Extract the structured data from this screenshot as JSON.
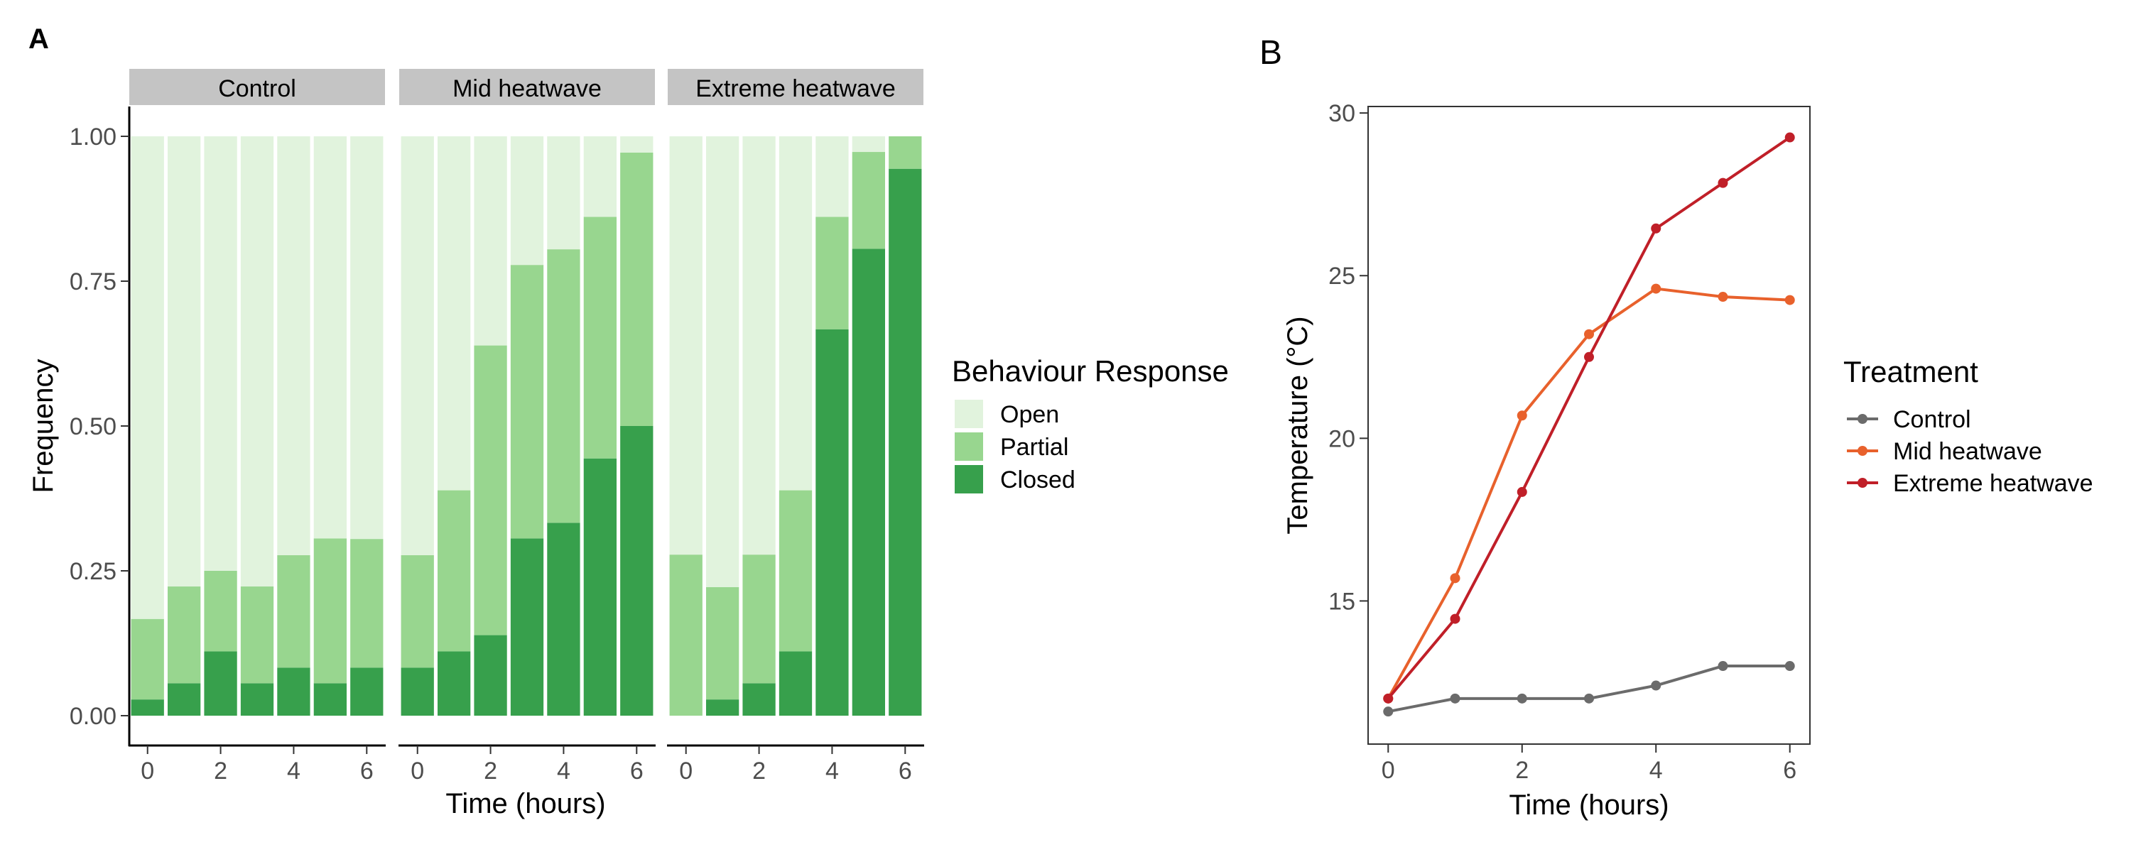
{
  "panel_a_label": "A",
  "panel_b_label": "B",
  "colors": {
    "Open": "#e1f3dd",
    "Partial": "#98d68f",
    "Closed": "#37a04c",
    "strip_bg": "#c4c4c4",
    "Control": "#6b6b6b",
    "Mid heatwave": "#e8612c",
    "Extreme heatwave": "#c01f28"
  },
  "chart_data": [
    {
      "type": "bar",
      "stacked": true,
      "facets": [
        "Control",
        "Mid heatwave",
        "Extreme heatwave"
      ],
      "xlabel": "Time (hours)",
      "ylabel": "Frequency",
      "x": [
        0,
        1,
        2,
        3,
        4,
        5,
        6
      ],
      "x_tick_labels": [
        "0",
        "2",
        "4",
        "6"
      ],
      "y_ticks": [
        "0.00",
        "0.25",
        "0.50",
        "0.75",
        "1.00"
      ],
      "ylim": [
        0,
        1
      ],
      "legend_title": "Behaviour Response",
      "legend_position": "right",
      "legend_entries": [
        "Open",
        "Partial",
        "Closed"
      ],
      "grid": false,
      "series": {
        "Control": {
          "Closed": [
            0.028,
            0.056,
            0.111,
            0.056,
            0.083,
            0.056,
            0.083
          ],
          "Partial": [
            0.139,
            0.167,
            0.139,
            0.167,
            0.194,
            0.25,
            0.222
          ],
          "Open": [
            0.833,
            0.777,
            0.75,
            0.777,
            0.723,
            0.694,
            0.695
          ]
        },
        "Mid heatwave": {
          "Closed": [
            0.083,
            0.111,
            0.139,
            0.306,
            0.333,
            0.444,
            0.5
          ],
          "Partial": [
            0.194,
            0.278,
            0.5,
            0.472,
            0.472,
            0.417,
            0.472
          ],
          "Open": [
            0.723,
            0.611,
            0.361,
            0.222,
            0.195,
            0.139,
            0.028
          ]
        },
        "Extreme heatwave": {
          "Closed": [
            0.0,
            0.028,
            0.056,
            0.111,
            0.667,
            0.806,
            0.944
          ],
          "Partial": [
            0.278,
            0.194,
            0.222,
            0.278,
            0.194,
            0.167,
            0.056
          ],
          "Open": [
            0.722,
            0.778,
            0.722,
            0.611,
            0.139,
            0.027,
            0.0
          ]
        }
      }
    },
    {
      "type": "line",
      "xlabel": "Time (hours)",
      "ylabel": "Temperature (°C)",
      "x": [
        0,
        1,
        2,
        3,
        4,
        5,
        6
      ],
      "x_ticks": [
        "0",
        "2",
        "4",
        "6"
      ],
      "y_ticks": [
        "15",
        "20",
        "25",
        "30"
      ],
      "xlim": [
        -0.3,
        6.3
      ],
      "ylim": [
        10.6,
        30.2
      ],
      "legend_title": "Treatment",
      "legend_position": "right",
      "grid": false,
      "series": [
        {
          "name": "Control",
          "values": [
            11.6,
            12.0,
            12.0,
            12.0,
            12.4,
            13.0,
            13.0
          ]
        },
        {
          "name": "Mid heatwave",
          "values": [
            12.0,
            15.7,
            20.7,
            23.2,
            24.6,
            24.35,
            24.25
          ]
        },
        {
          "name": "Extreme heatwave",
          "values": [
            12.0,
            14.45,
            18.35,
            22.5,
            26.45,
            27.85,
            29.25
          ]
        }
      ]
    }
  ]
}
